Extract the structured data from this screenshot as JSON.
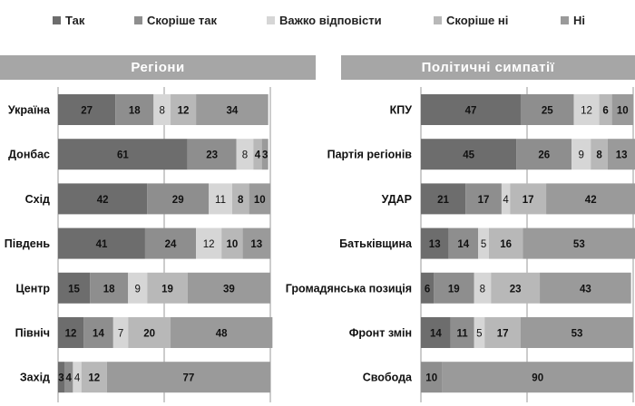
{
  "legend": [
    {
      "label": "Так",
      "color": "#6d6d6d"
    },
    {
      "label": "Скоріше так",
      "color": "#8e8e8e"
    },
    {
      "label": "Важко відповісти",
      "color": "#d6d6d6"
    },
    {
      "label": "Скоріше ні",
      "color": "#b8b8b8"
    },
    {
      "label": "Ні",
      "color": "#9a9a9a"
    }
  ],
  "chart_data": [
    {
      "type": "bar",
      "orientation": "horizontal",
      "stacked": true,
      "title": "Регіони",
      "categories": [
        "Україна",
        "Донбас",
        "Схід",
        "Південь",
        "Центр",
        "Північ",
        "Захід"
      ],
      "series": [
        {
          "name": "Так",
          "values": [
            27,
            61,
            42,
            41,
            15,
            12,
            3
          ]
        },
        {
          "name": "Скоріше так",
          "values": [
            18,
            23,
            29,
            24,
            18,
            14,
            4
          ]
        },
        {
          "name": "Важко відповісти",
          "values": [
            8,
            8,
            11,
            12,
            9,
            7,
            4
          ]
        },
        {
          "name": "Скоріше ні",
          "values": [
            12,
            4,
            8,
            10,
            19,
            20,
            12
          ]
        },
        {
          "name": "Ні",
          "values": [
            34,
            3,
            10,
            13,
            39,
            48,
            77
          ]
        }
      ],
      "xlim": [
        0,
        100
      ],
      "legend_position": "top"
    },
    {
      "type": "bar",
      "orientation": "horizontal",
      "stacked": true,
      "title": "Політичні симпатії",
      "categories": [
        "КПУ",
        "Партія регіонів",
        "УДАР",
        "Батьківщина",
        "Громадянська позиція",
        "Фронт змін",
        "Свобода"
      ],
      "series": [
        {
          "name": "Так",
          "values": [
            47,
            45,
            21,
            13,
            6,
            14,
            0
          ]
        },
        {
          "name": "Скоріше так",
          "values": [
            25,
            26,
            17,
            14,
            19,
            11,
            10
          ]
        },
        {
          "name": "Важко відповісти",
          "values": [
            12,
            9,
            4,
            5,
            8,
            5,
            0
          ]
        },
        {
          "name": "Скоріше ні",
          "values": [
            6,
            8,
            17,
            16,
            23,
            17,
            0
          ]
        },
        {
          "name": "Ні",
          "values": [
            10,
            13,
            42,
            53,
            43,
            53,
            90
          ]
        }
      ],
      "xlim": [
        0,
        100
      ],
      "legend_position": "top"
    }
  ]
}
